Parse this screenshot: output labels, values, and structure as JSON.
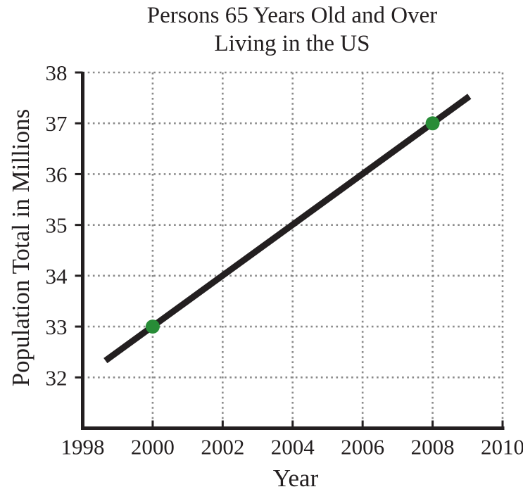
{
  "title": {
    "line1": "Persons 65 Years Old and Over",
    "line2": "Living in the US"
  },
  "chart_data": {
    "type": "line",
    "title": "Persons 65 Years Old and Over Living in the US",
    "xlabel": "Year",
    "ylabel": "Population Total in Millions",
    "xlim": [
      1998,
      2010
    ],
    "ylim": [
      31,
      38
    ],
    "xticks": [
      1998,
      2000,
      2002,
      2004,
      2006,
      2008,
      2010
    ],
    "yticks": [
      32,
      33,
      34,
      35,
      36,
      37,
      38
    ],
    "grid": true,
    "legend": false,
    "trend_line": {
      "x1": 1998.65,
      "y1": 32.33,
      "x2": 2009.05,
      "y2": 37.53
    },
    "points": [
      {
        "x": 2000,
        "y": 33
      },
      {
        "x": 2008,
        "y": 37
      }
    ],
    "colors": {
      "line": "#231f20",
      "axis": "#231f20",
      "grid": "#8a8a8a",
      "point": "#288c37",
      "text": "#231f20"
    }
  }
}
